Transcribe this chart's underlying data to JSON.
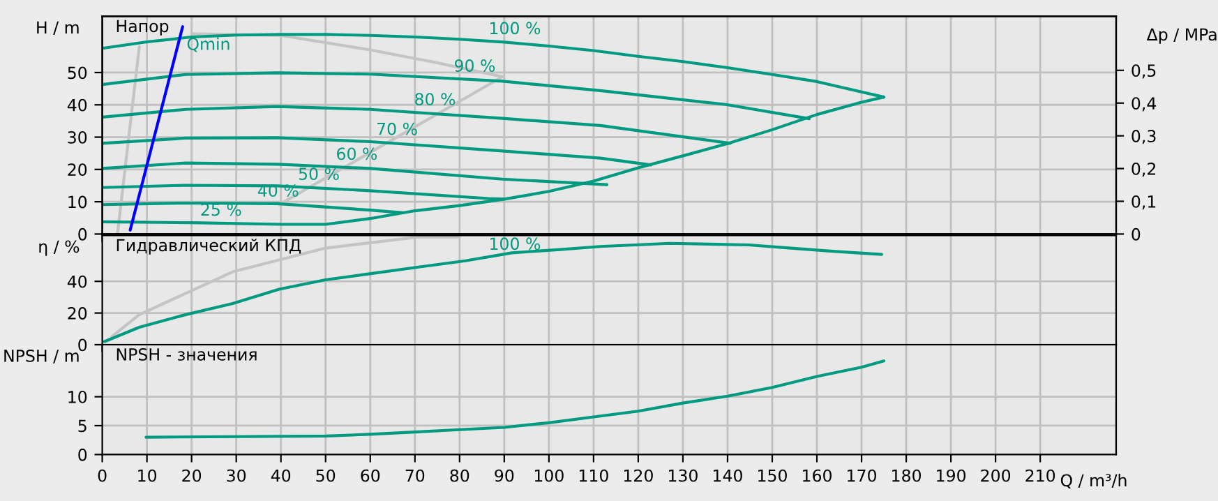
{
  "chart_data": [
    {
      "type": "line",
      "ylabel": "H / m",
      "y2label": "Δp / MPa",
      "annotations": [
        "Напор",
        {
          "text": "100 %",
          "x": 86.5,
          "y": 59.7
        },
        {
          "text": "90 %",
          "x": 78.7,
          "y": 48.1
        },
        {
          "text": "80 %",
          "x": 69.8,
          "y": 37.7
        },
        {
          "text": "70 %",
          "x": 61.3,
          "y": 28.5
        },
        {
          "text": "60 %",
          "x": 52.3,
          "y": 20.8
        },
        {
          "text": "50 %",
          "x": 43.8,
          "y": 14.6
        },
        {
          "text": "40 %",
          "x": 34.7,
          "y": 9.4
        },
        {
          "text": "25 %",
          "x": 21.9,
          "y": 3.5
        }
      ],
      "xlim": [
        0,
        227
      ],
      "xticks": [
        0,
        10,
        20,
        30,
        40,
        50,
        60,
        70,
        80,
        90,
        100,
        110,
        120,
        130,
        140,
        150,
        160,
        170,
        180,
        190,
        200,
        210
      ],
      "ylim": [
        0,
        67.4
      ],
      "yticks": [
        0,
        10,
        20,
        30,
        40,
        50
      ],
      "y2lim": [
        0,
        0.665
      ],
      "y2ticks": [
        0,
        {
          "value": 0.1,
          "label": "0,1"
        },
        {
          "value": 0.2,
          "label": "0,2"
        },
        {
          "value": 0.3,
          "label": "0,3"
        },
        {
          "value": 0.4,
          "label": "0,4"
        },
        {
          "value": 0.5,
          "label": "0,5"
        }
      ],
      "tick_labels": "y",
      "grid": true,
      "series": [
        {
          "color": "#c4c4c4",
          "x": [
            3.4,
            8.3
          ],
          "values": [
            0,
            58
          ]
        },
        {
          "color": "#c4c4c4",
          "x": [
            39.6,
            89.6
          ],
          "values": [
            9.1,
            48.7
          ]
        },
        {
          "color": "#c4c4c4",
          "x": [
            20,
            40,
            60,
            75,
            89.6
          ],
          "values": [
            62,
            61.5,
            57,
            53,
            48.7
          ]
        },
        {
          "color": "#009a80",
          "x": [
            0,
            10,
            20,
            30,
            40,
            50,
            60,
            70,
            80,
            90,
            100,
            110,
            120,
            130,
            140,
            150,
            160,
            170,
            175
          ],
          "values": [
            57.5,
            59.5,
            61,
            61.6,
            61.8,
            61.8,
            61.5,
            61,
            60.3,
            59.4,
            58.2,
            56.8,
            55,
            53.4,
            51.5,
            49.4,
            47.2,
            44,
            42.4
          ]
        },
        {
          "color": "#009a80",
          "x": [
            0,
            18.7,
            39.2,
            60,
            89.6,
            111.5,
            139.6,
            158.3
          ],
          "values": [
            46.3,
            49.4,
            49.9,
            49.5,
            47.3,
            44.4,
            40.1,
            35.7
          ]
        },
        {
          "color": "#009a80",
          "x": [
            0,
            18.7,
            39.2,
            60,
            89.6,
            111.5,
            140.6
          ],
          "values": [
            36.2,
            38.6,
            39.5,
            38.6,
            35.8,
            33.6,
            28.1
          ]
        },
        {
          "color": "#009a80",
          "x": [
            0,
            18.7,
            39.2,
            60,
            89.6,
            111.5,
            122.9
          ],
          "values": [
            28.1,
            29.7,
            29.8,
            28.6,
            25.7,
            23.5,
            21.4
          ]
        },
        {
          "color": "#009a80",
          "x": [
            0,
            18.7,
            39.2,
            60,
            89.6,
            113
          ],
          "values": [
            20.3,
            22.0,
            21.6,
            20.3,
            17.0,
            15.3
          ]
        },
        {
          "color": "#009a80",
          "x": [
            0,
            18.7,
            39.2,
            60,
            86.5,
            90
          ],
          "values": [
            14.4,
            15.1,
            14.9,
            13.4,
            11.0,
            10.8
          ]
        },
        {
          "color": "#009a80",
          "x": [
            0,
            18.7,
            39.2,
            60,
            67.3
          ],
          "values": [
            9.1,
            9.6,
            9.4,
            7.4,
            6.6
          ]
        },
        {
          "color": "#009a80",
          "x": [
            0,
            20,
            40,
            50,
            60,
            70,
            80,
            90,
            100,
            110,
            120,
            130,
            140,
            150,
            160,
            170,
            175
          ],
          "values": [
            3.8,
            3.5,
            3.0,
            3.0,
            4.8,
            7.2,
            8.8,
            10.8,
            13.2,
            16.4,
            20.5,
            24.2,
            28,
            32.3,
            37,
            40.8,
            42.4
          ]
        },
        {
          "name": "Qmin",
          "color": "#0000ff",
          "x": [
            6.25,
            18.0
          ],
          "values": [
            1.2,
            64.2
          ]
        }
      ]
    },
    {
      "type": "line",
      "ylabel": "η / %",
      "annotations": [
        "Гидравлический КПД",
        {
          "text": "100 %",
          "x": 86.5,
          "y": 55.5
        }
      ],
      "xlim": [
        0,
        227
      ],
      "xticks": [
        0,
        10,
        20,
        30,
        40,
        50,
        60,
        70,
        80,
        90,
        100,
        110,
        120,
        130,
        140,
        150,
        160,
        170,
        180,
        190,
        200,
        210
      ],
      "ylim": [
        0,
        69
      ],
      "yticks": [
        0,
        20,
        40
      ],
      "tick_labels": "y",
      "grid": true,
      "series": [
        {
          "color": "#c4c4c4",
          "x": [
            2.1,
            8.3,
            29.2,
            50,
            70.8,
            80
          ],
          "values": [
            5,
            19,
            46,
            61,
            68,
            68
          ]
        },
        {
          "color": "#009a80",
          "x": [
            0.5,
            8.3,
            18.7,
            29.2,
            39.6,
            50,
            60.4,
            70.8,
            81.3,
            91.7,
            102,
            111.5,
            127,
            144.8,
            154.2,
            163.6,
            174.5
          ],
          "values": [
            2,
            11,
            19,
            26,
            35,
            41,
            45,
            49,
            53,
            58,
            60,
            62,
            64,
            63,
            61,
            59,
            57
          ]
        }
      ]
    },
    {
      "type": "line",
      "ylabel": "NPSH / m",
      "xlabel": "Q / m³/h",
      "annotations": [
        "NPSH - значения"
      ],
      "xlim": [
        0,
        227
      ],
      "xticks": [
        0,
        10,
        20,
        30,
        40,
        50,
        60,
        70,
        80,
        90,
        100,
        110,
        120,
        130,
        140,
        150,
        160,
        170,
        180,
        190,
        200,
        210
      ],
      "ylim": [
        0,
        19
      ],
      "yticks": [
        0,
        5,
        10
      ],
      "grid": true,
      "series": [
        {
          "color": "#009a80",
          "x": [
            9.8,
            30,
            50,
            60,
            70,
            80,
            90,
            100,
            110,
            120,
            130,
            140,
            150,
            160,
            170,
            175
          ],
          "values": [
            3.0,
            3.1,
            3.2,
            3.5,
            3.9,
            4.3,
            4.7,
            5.5,
            6.5,
            7.5,
            8.9,
            10.1,
            11.6,
            13.5,
            15.1,
            16.2
          ]
        }
      ]
    }
  ]
}
